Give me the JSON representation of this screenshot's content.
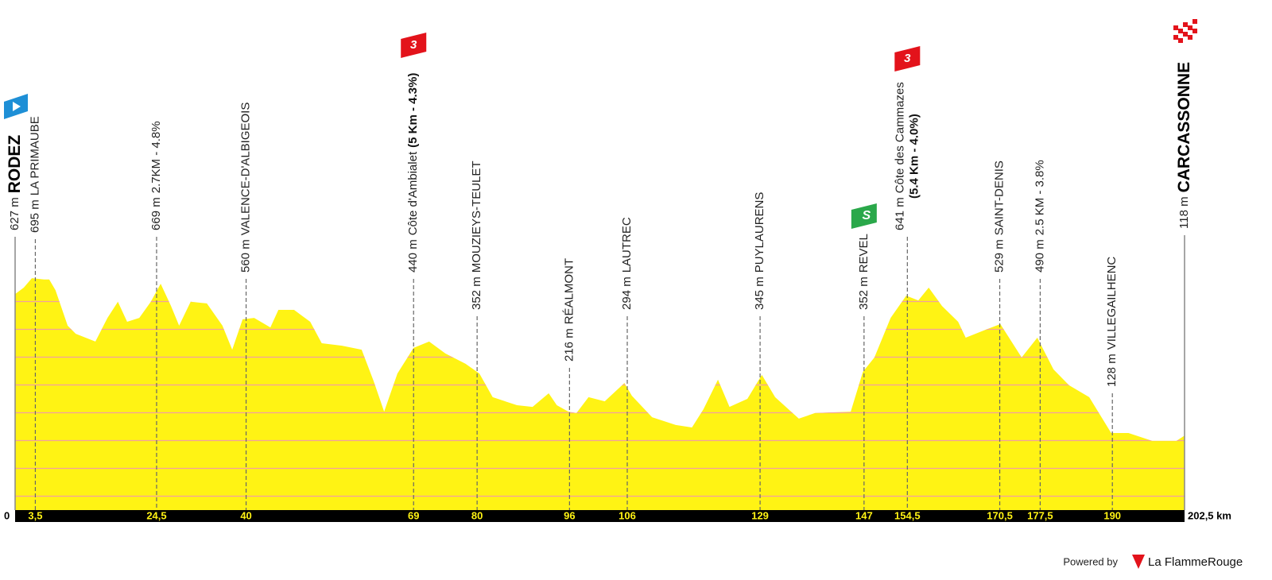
{
  "chart_data": {
    "type": "area",
    "color": "#fff314",
    "grid_color": "#f2a0a0",
    "grid": true,
    "xlim": [
      0,
      202.5
    ],
    "ylim": [
      -150,
      700
    ],
    "yticks": [
      -100,
      0,
      100,
      200,
      300,
      400,
      500,
      600
    ],
    "x": [
      0,
      1.5,
      2.9,
      5,
      5.9,
      7,
      9.1,
      10.5,
      13.9,
      16,
      17.8,
      19.4,
      21.5,
      23.5,
      25.2,
      27,
      28.4,
      30.4,
      33.2,
      35.9,
      37.6,
      39.4,
      41.4,
      44.2,
      45.6,
      48.3,
      51.1,
      53.1,
      56.6,
      60,
      62.1,
      63.9,
      66.2,
      69,
      71.7,
      74.5,
      78,
      80.4,
      82.7,
      86.9,
      89.6,
      92.4,
      93.8,
      95.8,
      97.2,
      99.3,
      102.1,
      105.5,
      106.8,
      110.3,
      114.4,
      117.2,
      119.2,
      121.7,
      123.7,
      126.8,
      129.3,
      131.6,
      135.7,
      138.5,
      144.7,
      146.8,
      148.8,
      151.6,
      154.3,
      156.4,
      158.2,
      160.5,
      163.3,
      164.6,
      168.1,
      170.6,
      174.3,
      177,
      179.8,
      182.5,
      186,
      189.8,
      192.8,
      196.9,
      201.1,
      202.5
    ],
    "values": [
      627,
      650,
      684,
      679,
      679,
      641,
      513,
      484,
      456,
      541,
      599,
      527,
      541,
      599,
      664,
      584,
      513,
      599,
      593,
      513,
      427,
      536,
      541,
      507,
      570,
      570,
      527,
      450,
      441,
      427,
      313,
      204,
      341,
      433,
      456,
      413,
      376,
      341,
      256,
      227,
      221,
      270,
      227,
      204,
      199,
      256,
      241,
      307,
      261,
      184,
      156,
      147,
      213,
      319,
      221,
      250,
      336,
      256,
      179,
      199,
      204,
      347,
      399,
      541,
      621,
      604,
      650,
      584,
      527,
      470,
      499,
      519,
      399,
      470,
      356,
      299,
      256,
      127,
      127,
      99,
      99,
      118
    ],
    "start": {
      "km": 0,
      "km_label": "0",
      "elevation_label": "627 m",
      "name": "RODEZ"
    },
    "finish": {
      "km": 202.5,
      "km_label": "202,5 km",
      "elevation_label": "118 m",
      "name": "CARCASSONNE"
    },
    "waypoints": [
      {
        "km": 3.5,
        "km_label": "3,5",
        "elevation_label": "695 m",
        "name": "LA PRIMAUBE"
      },
      {
        "km": 24.5,
        "km_label": "24,5",
        "elevation_label": "669 m",
        "name": "2.7KM - 4.8%"
      },
      {
        "km": 40,
        "km_label": "40",
        "elevation_label": "560 m",
        "name": "VALENCE-D'ALBIGEOIS"
      },
      {
        "km": 69,
        "km_label": "69",
        "elevation_label": "440 m",
        "name": "Côte d'Ambialet",
        "detail": "(5 Km - 4.3%)",
        "category": "3"
      },
      {
        "km": 80,
        "km_label": "80",
        "elevation_label": "352 m",
        "name": "MOUZIEYS-TEULET"
      },
      {
        "km": 96,
        "km_label": "96",
        "elevation_label": "216 m",
        "name": "RÉALMONT"
      },
      {
        "km": 106,
        "km_label": "106",
        "elevation_label": "294 m",
        "name": "LAUTREC"
      },
      {
        "km": 129,
        "km_label": "129",
        "elevation_label": "345 m",
        "name": "PUYLAURENS"
      },
      {
        "km": 147,
        "km_label": "147",
        "elevation_label": "352 m",
        "name": "REVEL",
        "sprint": "S"
      },
      {
        "km": 154.5,
        "km_label": "154,5",
        "elevation_label": "641 m",
        "name": "Côte des Cammazes",
        "detail": "(5.4 Km - 4.0%)",
        "category": "3"
      },
      {
        "km": 170.5,
        "km_label": "170,5",
        "elevation_label": "529 m",
        "name": "SAINT-DENIS"
      },
      {
        "km": 177.5,
        "km_label": "177,5",
        "elevation_label": "490 m",
        "name": "2.5 KM - 3.8%"
      },
      {
        "km": 190,
        "km_label": "190",
        "elevation_label": "128 m",
        "name": "VILLEGAILHENC"
      }
    ],
    "footer": {
      "powered": "Powered by",
      "brand": "La FlammeRouge"
    }
  }
}
